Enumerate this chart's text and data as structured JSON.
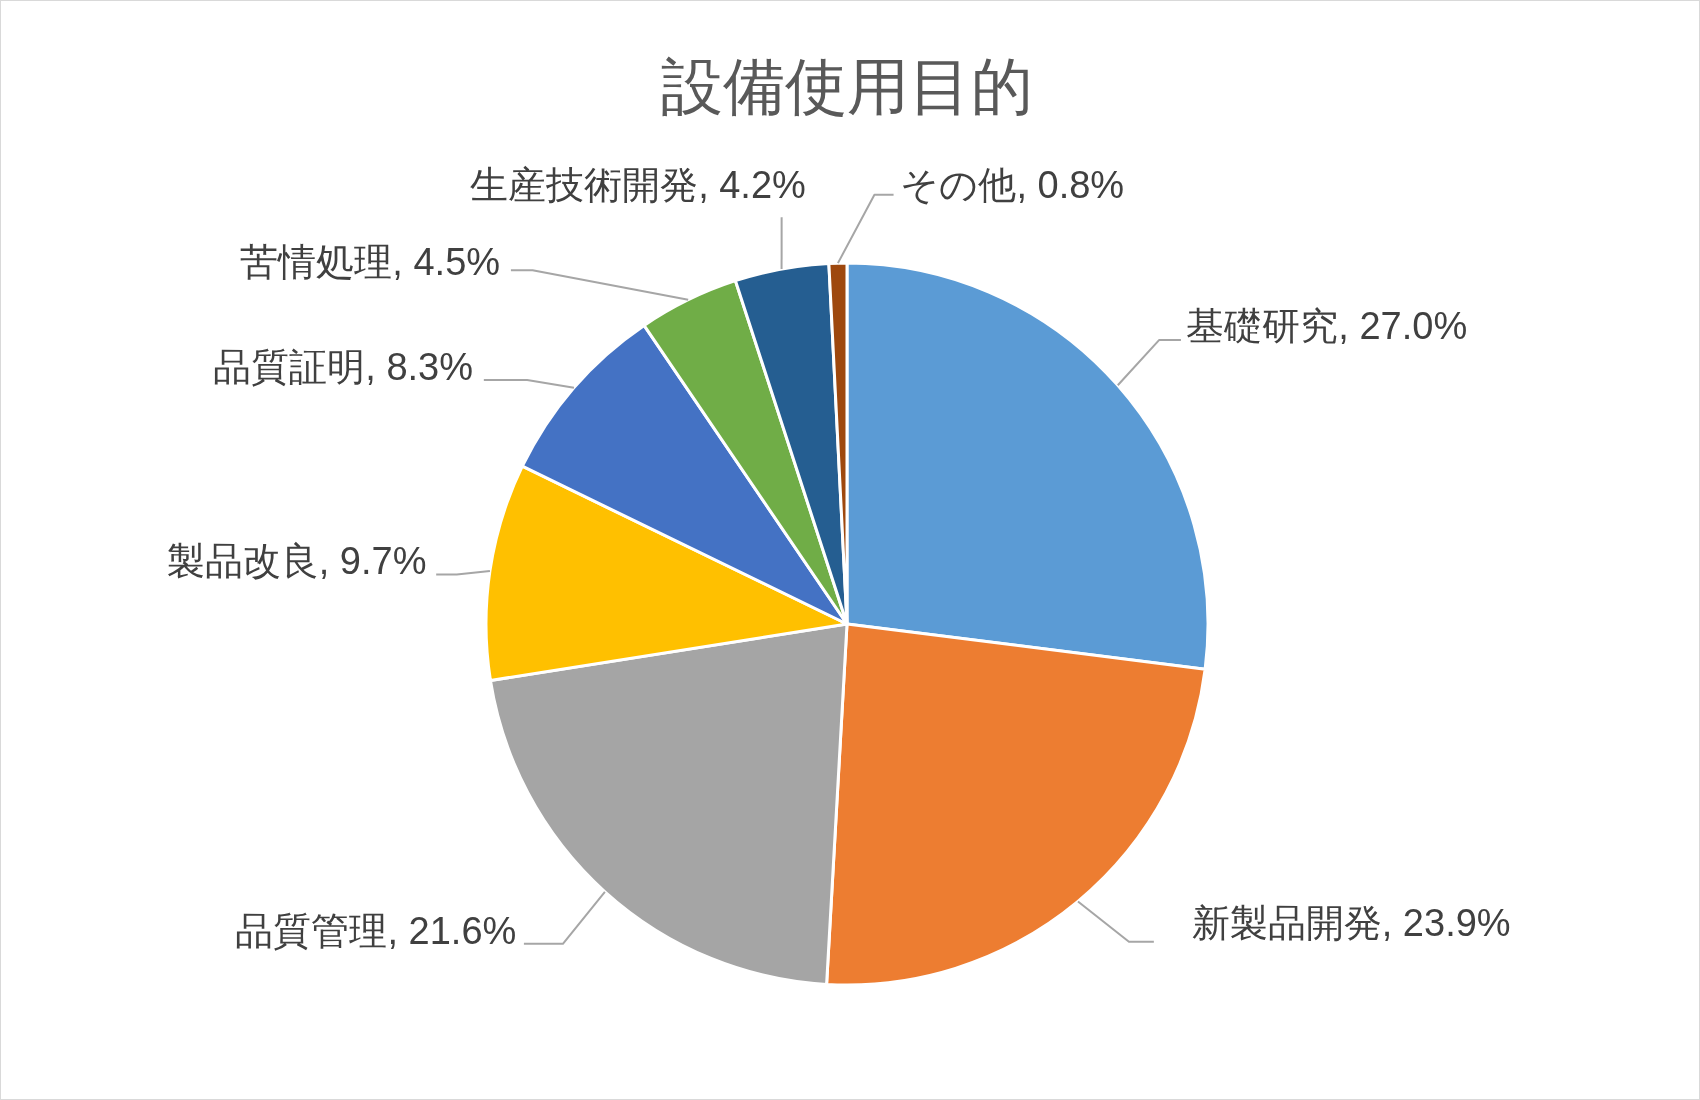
{
  "chart_data": {
    "type": "pie",
    "title": "設備使用目的",
    "categories": [
      "基礎研究",
      "新製品開発",
      "品質管理",
      "製品改良",
      "品質証明",
      "苦情処理",
      "生産技術開発",
      "その他"
    ],
    "values": [
      27.0,
      23.9,
      21.6,
      9.7,
      8.3,
      4.5,
      4.2,
      0.8
    ],
    "colors": [
      "#5b9bd5",
      "#ed7d31",
      "#a5a5a5",
      "#ffc000",
      "#4472c4",
      "#70ad47",
      "#255e91",
      "#9e480e"
    ],
    "value_labels": [
      "27.0%",
      "23.9%",
      "21.6%",
      "9.7%",
      "8.3%",
      "4.5%",
      "4.2%",
      "0.8%"
    ]
  }
}
